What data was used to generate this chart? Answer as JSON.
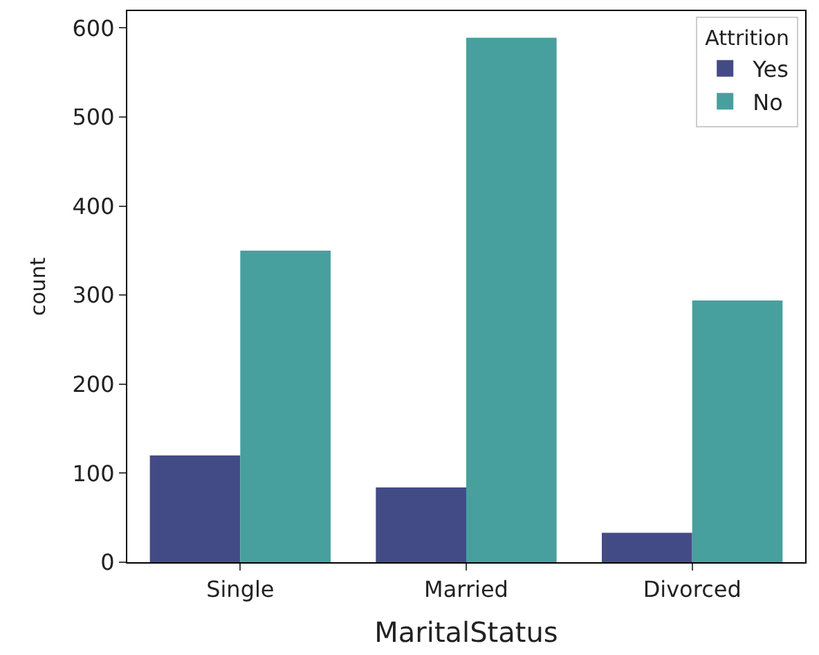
{
  "chart_data": {
    "type": "bar",
    "xlabel": "MaritalStatus",
    "ylabel": "count",
    "legend_title": "Attrition",
    "categories": [
      "Single",
      "Married",
      "Divorced"
    ],
    "series": [
      {
        "name": "Yes",
        "color": "#434b86",
        "values": [
          120,
          84,
          33
        ]
      },
      {
        "name": "No",
        "color": "#47a09e",
        "values": [
          350,
          589,
          294
        ]
      }
    ],
    "ylim": [
      0,
      619
    ],
    "yticks": [
      0,
      100,
      200,
      300,
      400,
      500,
      600
    ],
    "legend": "top right"
  }
}
